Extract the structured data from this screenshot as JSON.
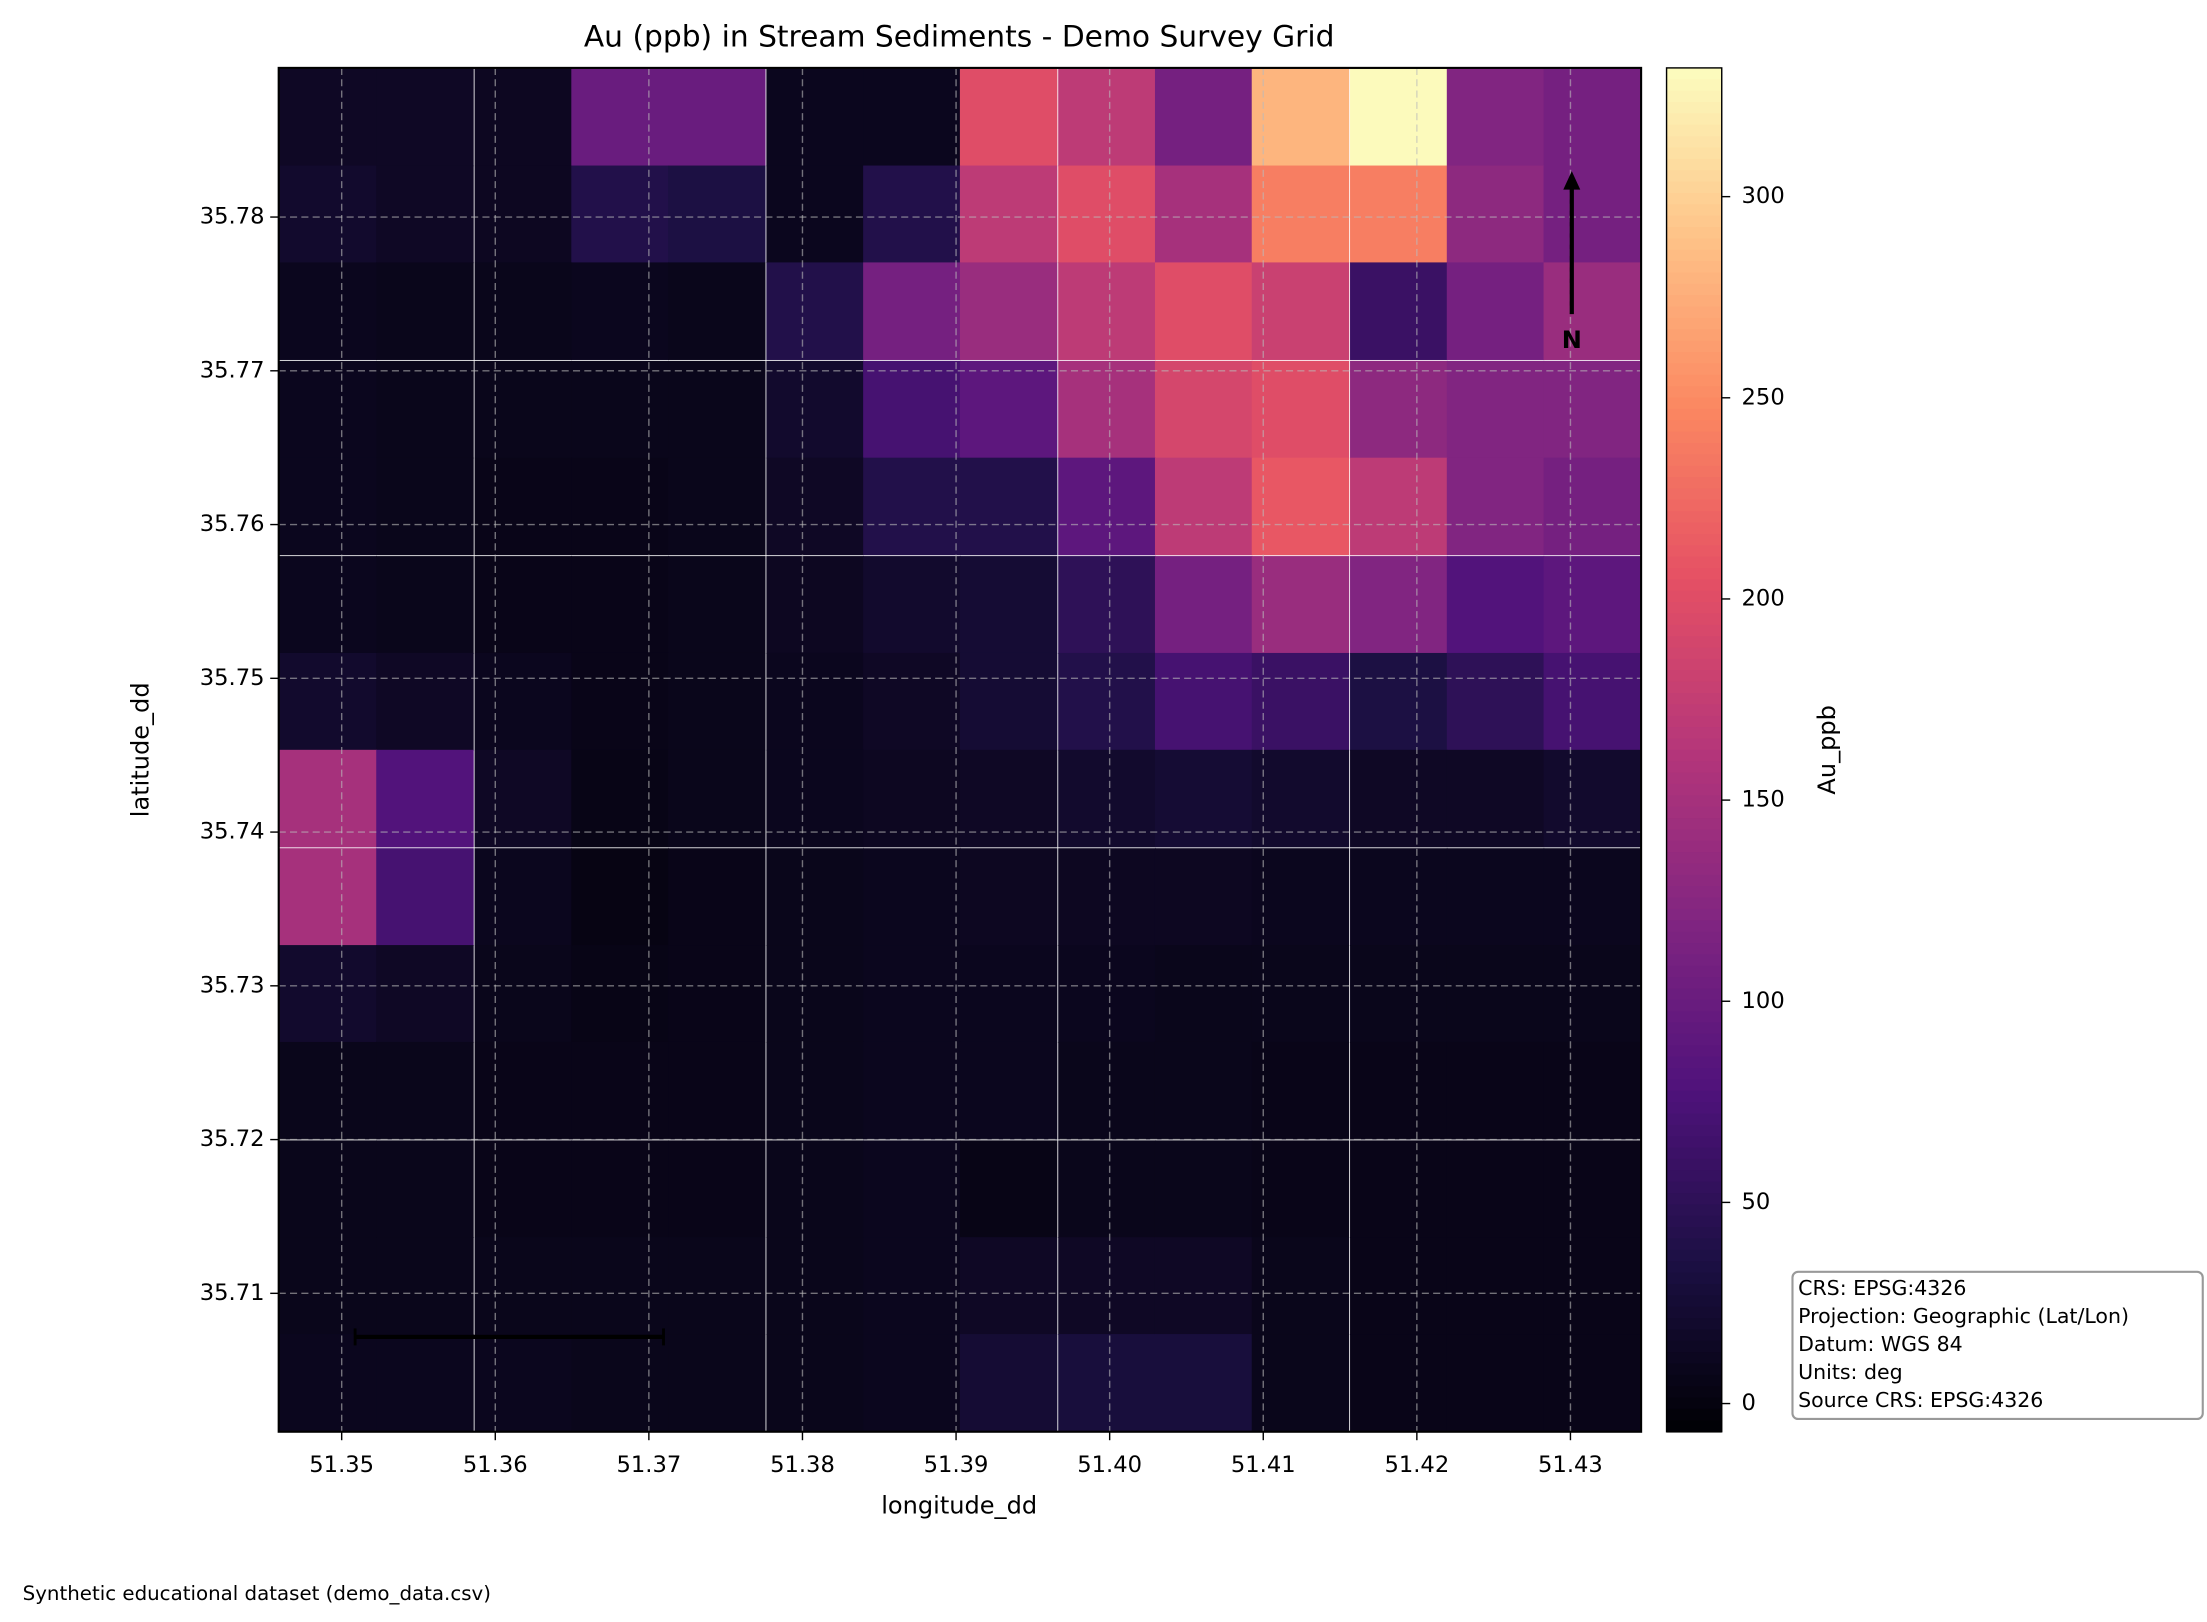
{
  "chart_data": {
    "type": "heatmap",
    "title": "Au (ppb) in Stream Sediments - Demo Survey Grid",
    "x_label": "longitude_dd",
    "y_label": "latitude_dd",
    "colorbar_label": "Au_ppb",
    "colormap": "magma",
    "clim": [
      -7,
      332
    ],
    "colorbar_ticks": [
      0,
      50,
      100,
      150,
      200,
      250,
      300
    ],
    "xlim": [
      51.3459,
      51.4346
    ],
    "ylim": [
      35.701,
      35.7897
    ],
    "xticks": [
      51.35,
      51.36,
      51.37,
      51.38,
      51.39,
      {
        "value": 51.4,
        "label": "51.40"
      },
      51.41,
      51.42,
      51.43
    ],
    "yticks": [
      35.71,
      35.72,
      35.73,
      35.74,
      35.75,
      35.76,
      35.77,
      35.78
    ],
    "grid": true,
    "x": [
      51.3491,
      51.3554,
      51.3618,
      51.3681,
      51.3744,
      51.3808,
      51.3871,
      51.3934,
      51.3998,
      51.4061,
      51.4124,
      51.4188,
      51.4251,
      51.4314
    ],
    "y": [
      35.7865,
      35.7802,
      35.7739,
      35.7675,
      35.7612,
      35.7548,
      35.7485,
      35.7422,
      35.7358,
      35.7295,
      35.7232,
      35.7168,
      35.7105,
      35.7042
    ],
    "z": [
      [
        15,
        15,
        12,
        100,
        100,
        10,
        10,
        200,
        170,
        110,
        280,
        330,
        120,
        110
      ],
      [
        20,
        15,
        12,
        40,
        35,
        10,
        40,
        170,
        200,
        150,
        240,
        240,
        130,
        110
      ],
      [
        10,
        8,
        8,
        10,
        8,
        40,
        110,
        140,
        170,
        200,
        180,
        60,
        110,
        140
      ],
      [
        10,
        8,
        8,
        8,
        8,
        20,
        70,
        90,
        150,
        190,
        200,
        130,
        120,
        120
      ],
      [
        10,
        8,
        6,
        6,
        8,
        15,
        40,
        40,
        90,
        170,
        210,
        170,
        120,
        110
      ],
      [
        10,
        8,
        6,
        6,
        8,
        12,
        20,
        25,
        50,
        110,
        140,
        120,
        80,
        90
      ],
      [
        20,
        15,
        10,
        6,
        8,
        10,
        15,
        25,
        40,
        70,
        60,
        35,
        50,
        70
      ],
      [
        150,
        80,
        15,
        5,
        8,
        10,
        12,
        15,
        20,
        25,
        20,
        15,
        15,
        20
      ],
      [
        150,
        70,
        10,
        3,
        6,
        8,
        10,
        12,
        12,
        12,
        10,
        10,
        10,
        10
      ],
      [
        20,
        15,
        8,
        5,
        6,
        8,
        10,
        10,
        10,
        8,
        8,
        8,
        8,
        8
      ],
      [
        8,
        8,
        6,
        6,
        6,
        8,
        10,
        10,
        8,
        8,
        6,
        6,
        6,
        6
      ],
      [
        8,
        8,
        6,
        6,
        6,
        8,
        10,
        5,
        8,
        8,
        6,
        6,
        6,
        6
      ],
      [
        8,
        8,
        8,
        8,
        8,
        8,
        10,
        15,
        15,
        15,
        8,
        6,
        6,
        6
      ],
      [
        10,
        10,
        10,
        8,
        8,
        8,
        10,
        25,
        30,
        30,
        8,
        6,
        6,
        6
      ]
    ],
    "north_label": "N",
    "crs_info": [
      "CRS: EPSG:4326",
      "Projection: Geographic (Lat/Lon)",
      "Datum: WGS 84",
      "Units: deg",
      "Source CRS: EPSG:4326"
    ],
    "footer": "Synthetic educational dataset (demo_data.csv)"
  }
}
